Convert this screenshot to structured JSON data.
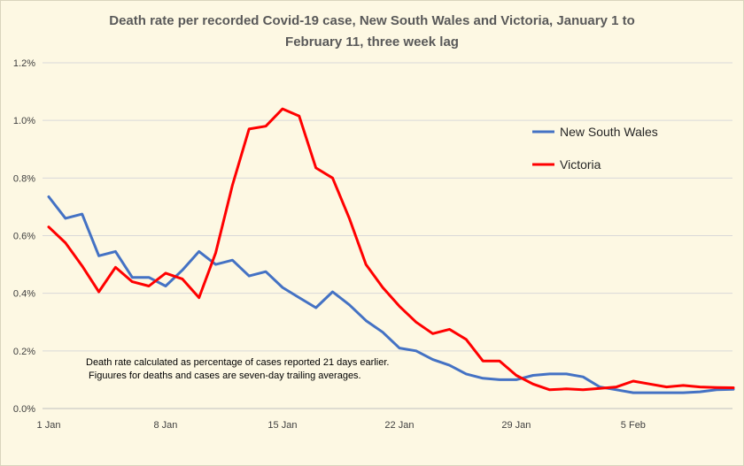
{
  "chart_data": {
    "type": "line",
    "title_lines": [
      "Death rate per recorded Covid-19 case, New South Wales and Victoria, January 1 to",
      "February 11, three week lag"
    ],
    "xlabel": "",
    "ylabel": "",
    "x_day_range": [
      1,
      42
    ],
    "x_ticks": [
      {
        "day": 1,
        "label": "1 Jan"
      },
      {
        "day": 8,
        "label": "8 Jan"
      },
      {
        "day": 15,
        "label": "15 Jan"
      },
      {
        "day": 22,
        "label": "22 Jan"
      },
      {
        "day": 29,
        "label": "29 Jan"
      },
      {
        "day": 36,
        "label": "5 Feb"
      }
    ],
    "ylim": [
      0,
      1.2
    ],
    "y_ticks": [
      {
        "value": 0,
        "label": "0.0%"
      },
      {
        "value": 0.2,
        "label": "0.2%"
      },
      {
        "value": 0.4,
        "label": "0.4%"
      },
      {
        "value": 0.6,
        "label": "0.6%"
      },
      {
        "value": 0.8,
        "label": "0.8%"
      },
      {
        "value": 1.0,
        "label": "1.0%"
      },
      {
        "value": 1.2,
        "label": "1.2%"
      }
    ],
    "grid": "horizontal",
    "legend_position": "right",
    "x_values_unit": "day of period (1 = 1 Jan)",
    "y_values_unit": "percent",
    "series": [
      {
        "name": "New South Wales",
        "color": "#4472c4",
        "values": [
          0.735,
          0.66,
          0.675,
          0.53,
          0.545,
          0.455,
          0.455,
          0.425,
          0.48,
          0.545,
          0.5,
          0.515,
          0.46,
          0.475,
          0.42,
          0.385,
          0.35,
          0.405,
          0.36,
          0.305,
          0.265,
          0.21,
          0.2,
          0.17,
          0.15,
          0.12,
          0.105,
          0.1,
          0.1,
          0.115,
          0.12,
          0.12,
          0.11,
          0.075,
          0.065,
          0.055,
          0.055,
          0.055,
          0.055,
          0.058,
          0.065,
          0.067
        ]
      },
      {
        "name": "Victoria",
        "color": "#ff0000",
        "values": [
          0.63,
          0.575,
          0.495,
          0.405,
          0.49,
          0.44,
          0.425,
          0.47,
          0.45,
          0.385,
          0.54,
          0.775,
          0.97,
          0.98,
          1.04,
          1.015,
          0.835,
          0.8,
          0.66,
          0.5,
          0.42,
          0.355,
          0.3,
          0.26,
          0.275,
          0.24,
          0.165,
          0.165,
          0.115,
          0.085,
          0.065,
          0.068,
          0.065,
          0.07,
          0.075,
          0.095,
          0.085,
          0.075,
          0.08,
          0.075,
          0.073,
          0.072
        ]
      }
    ],
    "annotation_lines": [
      "Death rate calculated as percentage of cases reported 21 days earlier.",
      " Figuures for deaths and cases are seven-day trailing averages."
    ]
  }
}
